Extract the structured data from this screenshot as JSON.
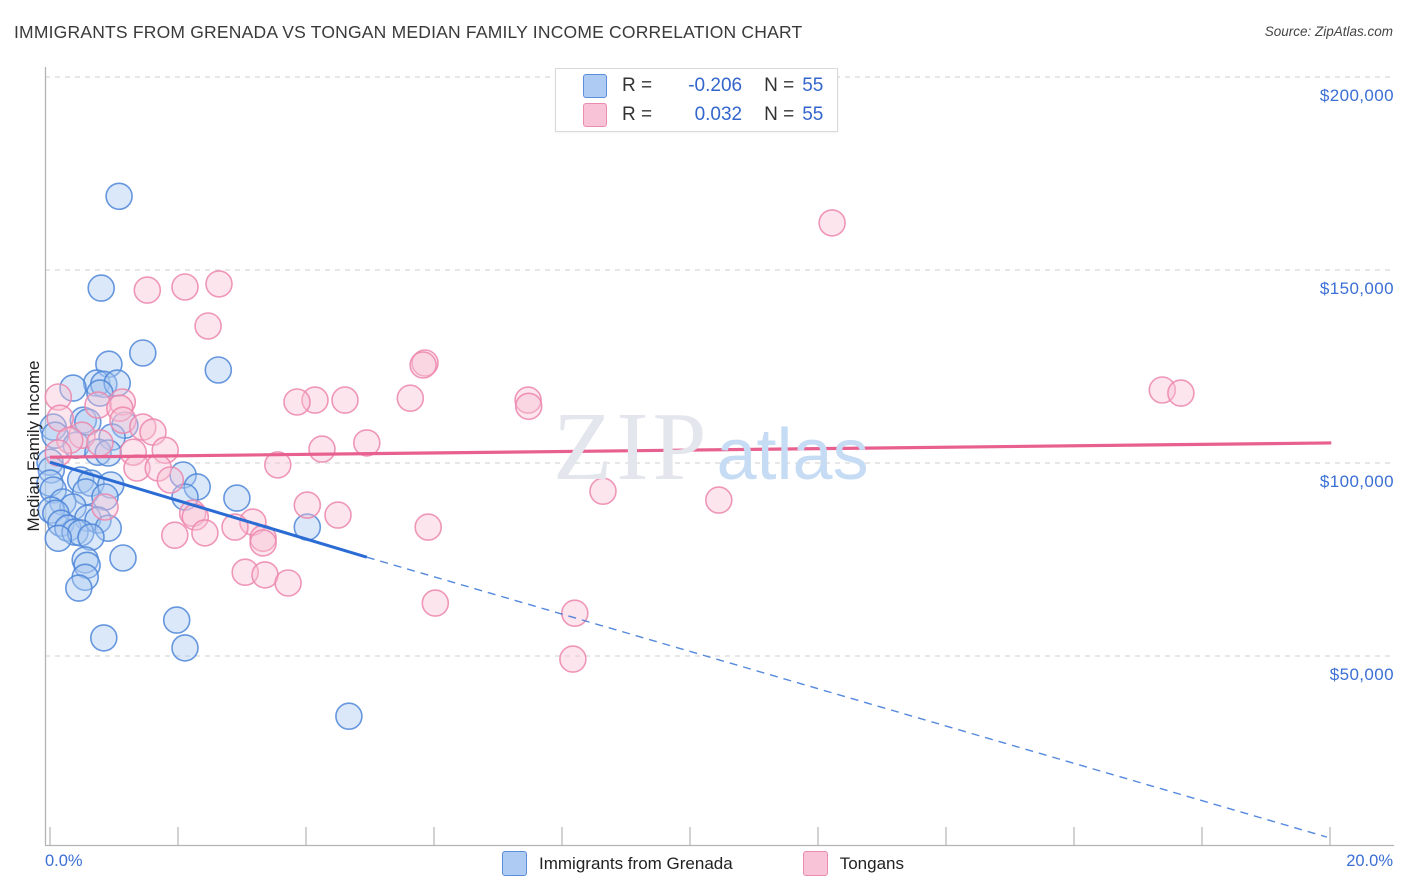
{
  "header": {
    "title": "IMMIGRANTS FROM GRENADA VS TONGAN MEDIAN FAMILY INCOME CORRELATION CHART",
    "source": "Source: ZipAtlas.com"
  },
  "watermark": {
    "part1": "ZIP",
    "part2": "atlas"
  },
  "legend_box": {
    "rows": [
      {
        "series": "grenada",
        "r_label": "R =",
        "r_value": "-0.206",
        "n_label": "N =",
        "n_value": "55"
      },
      {
        "series": "tongans",
        "r_label": "R =",
        "r_value": "0.032",
        "n_label": "N =",
        "n_value": "55"
      }
    ]
  },
  "bottom_legend": {
    "items": [
      {
        "key": "blue",
        "label": "Immigrants from Grenada"
      },
      {
        "key": "pink",
        "label": "Tongans"
      }
    ]
  },
  "colors": {
    "blue_fill": "#aac9f1",
    "blue_stroke": "#4e86d8",
    "pink_fill": "#f7c0d5",
    "pink_stroke": "#ec86ad",
    "blue_trend": "#2b6cd4",
    "pink_trend": "#e8608f",
    "grid": "#cfcfcf",
    "axis": "#b3b3b3",
    "tick_label": "#3b6fd4"
  },
  "chart_data": {
    "type": "scatter",
    "title": "IMMIGRANTS FROM GRENADA VS TONGAN MEDIAN FAMILY INCOME CORRELATION CHART",
    "xlabel_min": "0.0%",
    "xlabel_max": "20.0%",
    "ylabel": "Median Family Income",
    "x_unit": "percent",
    "y_unit": "USD",
    "xlim": [
      0,
      21.1
    ],
    "ylim": [
      0,
      202000
    ],
    "x_ticks_pct": [
      0,
      2,
      4,
      6,
      8,
      10,
      12,
      14,
      16,
      18,
      20
    ],
    "y_ticks": [
      {
        "value": 200000,
        "label": "$200,000"
      },
      {
        "value": 150000,
        "label": "$150,000"
      },
      {
        "value": 100000,
        "label": "$100,000"
      },
      {
        "value": 50000,
        "label": "$50,000"
      }
    ],
    "grid": "dashed-horizontal",
    "legend_position": "bottom-center",
    "series": [
      {
        "name": "Immigrants from Grenada",
        "R": -0.206,
        "N": 55,
        "color_key": "blue",
        "trend_solid": [
          [
            0.0,
            100200
          ],
          [
            4.95,
            75600
          ]
        ],
        "trend_dashed": [
          [
            4.95,
            75600
          ],
          [
            19.95,
            3100
          ]
        ],
        "points": [
          [
            1.08,
            169100
          ],
          [
            0.8,
            145300
          ],
          [
            1.45,
            128500
          ],
          [
            0.92,
            125600
          ],
          [
            2.63,
            124100
          ],
          [
            0.73,
            120700
          ],
          [
            0.84,
            120400
          ],
          [
            1.05,
            120700
          ],
          [
            0.36,
            119400
          ],
          [
            0.78,
            118100
          ],
          [
            0.52,
            111100
          ],
          [
            0.59,
            110600
          ],
          [
            1.17,
            109800
          ],
          [
            0.05,
            109300
          ],
          [
            0.08,
            107200
          ],
          [
            0.97,
            106700
          ],
          [
            0.41,
            104600
          ],
          [
            0.75,
            102800
          ],
          [
            0.91,
            102600
          ],
          [
            0.0,
            100200
          ],
          [
            0.02,
            98200
          ],
          [
            2.08,
            96900
          ],
          [
            0.48,
            95600
          ],
          [
            0.0,
            94800
          ],
          [
            0.64,
            94800
          ],
          [
            0.95,
            94300
          ],
          [
            2.3,
            93800
          ],
          [
            0.05,
            93000
          ],
          [
            0.56,
            92500
          ],
          [
            0.86,
            91200
          ],
          [
            2.11,
            91200
          ],
          [
            2.92,
            90900
          ],
          [
            0.2,
            89900
          ],
          [
            0.36,
            88600
          ],
          [
            0.02,
            87800
          ],
          [
            0.09,
            87000
          ],
          [
            0.59,
            85700
          ],
          [
            0.75,
            85200
          ],
          [
            0.17,
            84400
          ],
          [
            4.02,
            83400
          ],
          [
            0.28,
            83100
          ],
          [
            0.91,
            83100
          ],
          [
            0.39,
            82100
          ],
          [
            0.48,
            81900
          ],
          [
            0.64,
            80800
          ],
          [
            0.13,
            80500
          ],
          [
            1.14,
            75400
          ],
          [
            0.55,
            74900
          ],
          [
            0.58,
            73500
          ],
          [
            0.55,
            70400
          ],
          [
            0.45,
            67600
          ],
          [
            1.98,
            59300
          ],
          [
            0.84,
            54700
          ],
          [
            2.11,
            52100
          ],
          [
            4.67,
            34400
          ]
        ]
      },
      {
        "name": "Tongans",
        "R": 0.032,
        "N": 55,
        "color_key": "pink",
        "trend_solid": [
          [
            0.0,
            101500
          ],
          [
            20.02,
            105200
          ]
        ],
        "trend_dashed": null,
        "points": [
          [
            12.22,
            162200
          ],
          [
            2.64,
            146400
          ],
          [
            2.11,
            145600
          ],
          [
            1.52,
            144800
          ],
          [
            2.47,
            135500
          ],
          [
            5.86,
            125900
          ],
          [
            5.83,
            125400
          ],
          [
            17.38,
            118900
          ],
          [
            17.67,
            118100
          ],
          [
            0.13,
            117100
          ],
          [
            5.63,
            116800
          ],
          [
            4.14,
            116300
          ],
          [
            4.61,
            116300
          ],
          [
            7.47,
            116300
          ],
          [
            3.86,
            115800
          ],
          [
            1.13,
            115800
          ],
          [
            0.75,
            115000
          ],
          [
            7.48,
            114700
          ],
          [
            1.09,
            114200
          ],
          [
            0.16,
            111600
          ],
          [
            1.14,
            111100
          ],
          [
            1.45,
            109300
          ],
          [
            1.61,
            108000
          ],
          [
            0.5,
            107200
          ],
          [
            0.31,
            105900
          ],
          [
            0.78,
            105200
          ],
          [
            4.95,
            105200
          ],
          [
            4.25,
            103600
          ],
          [
            1.8,
            103300
          ],
          [
            1.3,
            102800
          ],
          [
            0.13,
            102600
          ],
          [
            3.56,
            99500
          ],
          [
            1.36,
            98700
          ],
          [
            1.69,
            98700
          ],
          [
            1.88,
            95600
          ],
          [
            8.64,
            92700
          ],
          [
            10.45,
            90400
          ],
          [
            4.02,
            89100
          ],
          [
            0.86,
            88600
          ],
          [
            2.23,
            87000
          ],
          [
            4.5,
            86500
          ],
          [
            2.27,
            86000
          ],
          [
            3.17,
            84700
          ],
          [
            2.89,
            83400
          ],
          [
            5.91,
            83400
          ],
          [
            2.42,
            81900
          ],
          [
            1.95,
            81300
          ],
          [
            3.33,
            80500
          ],
          [
            3.33,
            79300
          ],
          [
            3.05,
            71700
          ],
          [
            3.36,
            71000
          ],
          [
            3.72,
            68900
          ],
          [
            6.02,
            63700
          ],
          [
            8.2,
            61100
          ],
          [
            8.17,
            49200
          ]
        ]
      }
    ]
  }
}
